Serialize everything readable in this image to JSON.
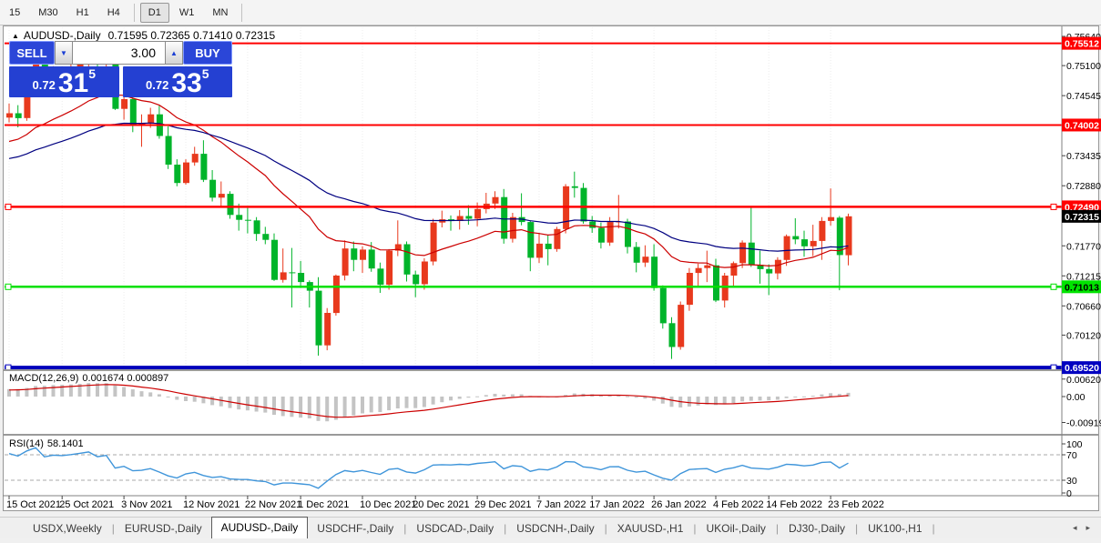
{
  "toolbar": {
    "timeframes": [
      {
        "label": "15",
        "active": false,
        "sep_after": false
      },
      {
        "label": "M30",
        "active": false,
        "sep_after": false
      },
      {
        "label": "H1",
        "active": false,
        "sep_after": false
      },
      {
        "label": "H4",
        "active": false,
        "sep_after": true
      },
      {
        "label": "D1",
        "active": true,
        "sep_after": false
      },
      {
        "label": "W1",
        "active": false,
        "sep_after": false
      },
      {
        "label": "MN",
        "active": false,
        "sep_after": true
      }
    ]
  },
  "chart_header": {
    "collapse_icon": "▲",
    "symbol_label": "AUDUSD-,Daily",
    "ohlc_text": "0.71595 0.72365 0.71410 0.72315"
  },
  "trade_panel": {
    "sell_label": "SELL",
    "buy_label": "BUY",
    "volume": "3.00",
    "volume_down_icon": "▼",
    "volume_up_icon": "▲",
    "sell_price": {
      "prefix": "0.72",
      "big": "31",
      "sup": "5"
    },
    "buy_price": {
      "prefix": "0.72",
      "big": "33",
      "sup": "5"
    }
  },
  "chart_data": {
    "type": "candlestick",
    "symbol": "AUDUSD-",
    "period": "Daily",
    "colors": {
      "bull": "#e8391d",
      "bear": "#00b42a",
      "ma_fast": "#cc0000",
      "ma_slow": "#000080",
      "macd_hist": "#c4c4c4",
      "macd_signal": "#cc0000",
      "rsi_line": "#3f95da",
      "grid": "#ececec"
    },
    "price_axis": {
      "ticks": [
        {
          "label": "0.75640",
          "value": 0.7564
        },
        {
          "label": "0.75100",
          "value": 0.751
        },
        {
          "label": "0.74545",
          "value": 0.74545
        },
        {
          "label": "0.73435",
          "value": 0.73435
        },
        {
          "label": "0.72880",
          "value": 0.7288
        },
        {
          "label": "0.71770",
          "value": 0.7177
        },
        {
          "label": "0.71215",
          "value": 0.71215
        },
        {
          "label": "0.70660",
          "value": 0.7066
        },
        {
          "label": "0.70120",
          "value": 0.7012
        }
      ],
      "badges": [
        {
          "label": "0.75512",
          "value": 0.75512,
          "bg": "#ff0000",
          "fg": "#ffffff"
        },
        {
          "label": "0.74002",
          "value": 0.74002,
          "bg": "#ff0000",
          "fg": "#ffffff"
        },
        {
          "label": "0.72490",
          "value": 0.7249,
          "bg": "#ff0000",
          "fg": "#ffffff"
        },
        {
          "label": "0.71013",
          "value": 0.71013,
          "bg": "#00e400",
          "fg": "#000000"
        },
        {
          "label": "0.69520",
          "value": 0.6952,
          "bg": "#0000c0",
          "fg": "#ffffff"
        },
        {
          "label": "0.72315",
          "value": 0.72315,
          "bg": "#000000",
          "fg": "#ffffff"
        }
      ]
    },
    "current_price": 0.72315,
    "hlines": [
      {
        "price": 0.75512,
        "color": "#ff0000",
        "width": 2,
        "handles": false
      },
      {
        "price": 0.74002,
        "color": "#ff0000",
        "width": 2,
        "handles": false
      },
      {
        "price": 0.7249,
        "color": "#ff0000",
        "width": 2.5,
        "handles": true
      },
      {
        "price": 0.71013,
        "color": "#00e000",
        "width": 2.5,
        "handles": true
      },
      {
        "price": 0.6952,
        "color": "#0000bb",
        "width": 4,
        "handles": true
      }
    ],
    "moving_averages": [
      {
        "period": 20,
        "color": "#cc0000"
      },
      {
        "period": 45,
        "color": "#000080"
      }
    ],
    "macd": {
      "name": "MACD(12,26,9)",
      "values_text": "0.001674 0.000897",
      "fast": 12,
      "slow": 26,
      "signal": 9,
      "scale": [
        {
          "label": "0.006201",
          "value": 0.006201
        },
        {
          "label": "0.00",
          "value": 0
        },
        {
          "label": "-0.00919",
          "value": -0.00919
        }
      ]
    },
    "rsi": {
      "name": "RSI(14)",
      "value_text": "58.1401",
      "period": 14,
      "levels": [
        70,
        30
      ],
      "scale": [
        {
          "label": "100",
          "value": 100
        },
        {
          "label": "70",
          "value": 70
        },
        {
          "label": "30",
          "value": 30
        },
        {
          "label": "0",
          "value": 0
        }
      ]
    },
    "date_ticks": [
      {
        "label": "15 Oct 2021",
        "index": 0
      },
      {
        "label": "25 Oct 2021",
        "index": 6
      },
      {
        "label": "3 Nov 2021",
        "index": 13
      },
      {
        "label": "12 Nov 2021",
        "index": 20
      },
      {
        "label": "22 Nov 2021",
        "index": 27
      },
      {
        "label": "1 Dec 2021",
        "index": 33
      },
      {
        "label": "10 Dec 2021",
        "index": 40
      },
      {
        "label": "20 Dec 2021",
        "index": 46
      },
      {
        "label": "29 Dec 2021",
        "index": 53
      },
      {
        "label": "7 Jan 2022",
        "index": 60
      },
      {
        "label": "17 Jan 2022",
        "index": 66
      },
      {
        "label": "26 Jan 2022",
        "index": 73
      },
      {
        "label": "4 Feb 2022",
        "index": 80
      },
      {
        "label": "14 Feb 2022",
        "index": 86
      },
      {
        "label": "23 Feb 2022",
        "index": 93
      }
    ],
    "candles": [
      [
        0.7414,
        0.744,
        0.7405,
        0.7422
      ],
      [
        0.7422,
        0.7437,
        0.7396,
        0.7413
      ],
      [
        0.7413,
        0.7477,
        0.7408,
        0.7465
      ],
      [
        0.7465,
        0.7532,
        0.7461,
        0.7517
      ],
      [
        0.7517,
        0.7546,
        0.7462,
        0.7468
      ],
      [
        0.7468,
        0.7509,
        0.7459,
        0.7491
      ],
      [
        0.7491,
        0.75,
        0.7461,
        0.7488
      ],
      [
        0.7488,
        0.7536,
        0.748,
        0.7501
      ],
      [
        0.7501,
        0.7528,
        0.7487,
        0.7518
      ],
      [
        0.7518,
        0.7551,
        0.7505,
        0.7539
      ],
      [
        0.7539,
        0.7541,
        0.7501,
        0.7512
      ],
      [
        0.7512,
        0.7535,
        0.7489,
        0.7529
      ],
      [
        0.7529,
        0.7535,
        0.7428,
        0.743
      ],
      [
        0.743,
        0.7455,
        0.741,
        0.7448
      ],
      [
        0.7448,
        0.7457,
        0.7387,
        0.7399
      ],
      [
        0.7399,
        0.742,
        0.736,
        0.7403
      ],
      [
        0.7403,
        0.7432,
        0.7395,
        0.742
      ],
      [
        0.742,
        0.7436,
        0.7375,
        0.738
      ],
      [
        0.738,
        0.7398,
        0.7319,
        0.7327
      ],
      [
        0.7327,
        0.7337,
        0.7287,
        0.7293
      ],
      [
        0.7293,
        0.7337,
        0.729,
        0.7331
      ],
      [
        0.7331,
        0.736,
        0.7325,
        0.7347
      ],
      [
        0.7347,
        0.7372,
        0.7295,
        0.7299
      ],
      [
        0.7299,
        0.7317,
        0.7259,
        0.7266
      ],
      [
        0.7266,
        0.7296,
        0.725,
        0.7273
      ],
      [
        0.7273,
        0.7278,
        0.7227,
        0.7234
      ],
      [
        0.7234,
        0.7255,
        0.7205,
        0.7225
      ],
      [
        0.7225,
        0.7247,
        0.72,
        0.7224
      ],
      [
        0.7224,
        0.723,
        0.7186,
        0.7199
      ],
      [
        0.7199,
        0.7212,
        0.718,
        0.7188
      ],
      [
        0.7188,
        0.72,
        0.7112,
        0.7114
      ],
      [
        0.7114,
        0.7172,
        0.7109,
        0.7128
      ],
      [
        0.7128,
        0.7173,
        0.7063,
        0.7127
      ],
      [
        0.7127,
        0.7149,
        0.7099,
        0.711
      ],
      [
        0.711,
        0.7113,
        0.7063,
        0.7094
      ],
      [
        0.7094,
        0.7119,
        0.6974,
        0.6993
      ],
      [
        0.6993,
        0.7062,
        0.6984,
        0.7053
      ],
      [
        0.7053,
        0.7124,
        0.7048,
        0.7122
      ],
      [
        0.7122,
        0.7187,
        0.7113,
        0.7172
      ],
      [
        0.7172,
        0.7185,
        0.713,
        0.7151
      ],
      [
        0.7151,
        0.7176,
        0.7127,
        0.717
      ],
      [
        0.717,
        0.7184,
        0.7129,
        0.7135
      ],
      [
        0.7135,
        0.7146,
        0.709,
        0.7105
      ],
      [
        0.7105,
        0.7171,
        0.7096,
        0.7168
      ],
      [
        0.7168,
        0.7224,
        0.7158,
        0.718
      ],
      [
        0.718,
        0.7185,
        0.7111,
        0.7124
      ],
      [
        0.7124,
        0.7131,
        0.7082,
        0.7106
      ],
      [
        0.7106,
        0.7154,
        0.7096,
        0.7148
      ],
      [
        0.7148,
        0.7227,
        0.7141,
        0.722
      ],
      [
        0.722,
        0.7242,
        0.7211,
        0.7226
      ],
      [
        0.7226,
        0.7233,
        0.7205,
        0.7223
      ],
      [
        0.7223,
        0.7243,
        0.7207,
        0.7232
      ],
      [
        0.7232,
        0.7252,
        0.7216,
        0.7227
      ],
      [
        0.7227,
        0.7257,
        0.7213,
        0.7245
      ],
      [
        0.7245,
        0.7275,
        0.7237,
        0.7255
      ],
      [
        0.7255,
        0.7278,
        0.7245,
        0.7267
      ],
      [
        0.7267,
        0.7282,
        0.7181,
        0.719
      ],
      [
        0.719,
        0.7238,
        0.7183,
        0.723
      ],
      [
        0.723,
        0.7274,
        0.7215,
        0.7221
      ],
      [
        0.7221,
        0.7224,
        0.713,
        0.7155
      ],
      [
        0.7155,
        0.7201,
        0.7145,
        0.7181
      ],
      [
        0.7181,
        0.7197,
        0.7141,
        0.7171
      ],
      [
        0.7171,
        0.7212,
        0.7166,
        0.7208
      ],
      [
        0.7208,
        0.7291,
        0.72,
        0.7287
      ],
      [
        0.7287,
        0.7314,
        0.7266,
        0.7284
      ],
      [
        0.7284,
        0.7293,
        0.7218,
        0.7222
      ],
      [
        0.7222,
        0.7232,
        0.7201,
        0.721
      ],
      [
        0.721,
        0.722,
        0.7172,
        0.7183
      ],
      [
        0.7183,
        0.723,
        0.7177,
        0.7221
      ],
      [
        0.7221,
        0.7271,
        0.7209,
        0.7222
      ],
      [
        0.7222,
        0.7227,
        0.7163,
        0.7175
      ],
      [
        0.7175,
        0.7184,
        0.7128,
        0.7146
      ],
      [
        0.7146,
        0.7178,
        0.7138,
        0.7157
      ],
      [
        0.7157,
        0.718,
        0.7094,
        0.7099
      ],
      [
        0.7099,
        0.7104,
        0.7024,
        0.7034
      ],
      [
        0.7034,
        0.7045,
        0.6968,
        0.699
      ],
      [
        0.699,
        0.7074,
        0.6985,
        0.7068
      ],
      [
        0.7068,
        0.7136,
        0.7057,
        0.7127
      ],
      [
        0.7127,
        0.7144,
        0.71,
        0.7136
      ],
      [
        0.7136,
        0.7168,
        0.711,
        0.7141
      ],
      [
        0.7141,
        0.7153,
        0.7073,
        0.7076
      ],
      [
        0.7076,
        0.7127,
        0.7063,
        0.7122
      ],
      [
        0.7122,
        0.7148,
        0.71,
        0.7145
      ],
      [
        0.7145,
        0.7187,
        0.7136,
        0.7183
      ],
      [
        0.7183,
        0.7248,
        0.7138,
        0.7142
      ],
      [
        0.7142,
        0.7168,
        0.7107,
        0.7134
      ],
      [
        0.7134,
        0.7143,
        0.7086,
        0.7126
      ],
      [
        0.7126,
        0.7156,
        0.7115,
        0.7151
      ],
      [
        0.7151,
        0.7198,
        0.714,
        0.7195
      ],
      [
        0.7195,
        0.7228,
        0.718,
        0.7189
      ],
      [
        0.7189,
        0.7205,
        0.7157,
        0.7176
      ],
      [
        0.7176,
        0.7216,
        0.7158,
        0.7186
      ],
      [
        0.7186,
        0.723,
        0.7151,
        0.7223
      ],
      [
        0.7223,
        0.7283,
        0.7214,
        0.723
      ],
      [
        0.7229,
        0.7232,
        0.7095,
        0.716
      ],
      [
        0.71595,
        0.72365,
        0.7141,
        0.72315
      ]
    ]
  },
  "tabs": {
    "items": [
      {
        "label": "USDX,Weekly",
        "active": false
      },
      {
        "label": "EURUSD-,Daily",
        "active": false
      },
      {
        "label": "AUDUSD-,Daily",
        "active": true
      },
      {
        "label": "USDCHF-,Daily",
        "active": false
      },
      {
        "label": "USDCAD-,Daily",
        "active": false
      },
      {
        "label": "USDCNH-,Daily",
        "active": false
      },
      {
        "label": "XAUUSD-,H1",
        "active": false
      },
      {
        "label": "UKOil-,Daily",
        "active": false
      },
      {
        "label": "DJ30-,Daily",
        "active": false
      },
      {
        "label": "UK100-,H1",
        "active": false
      }
    ],
    "scroll_left_icon": "◂",
    "scroll_right_icon": "▸"
  }
}
